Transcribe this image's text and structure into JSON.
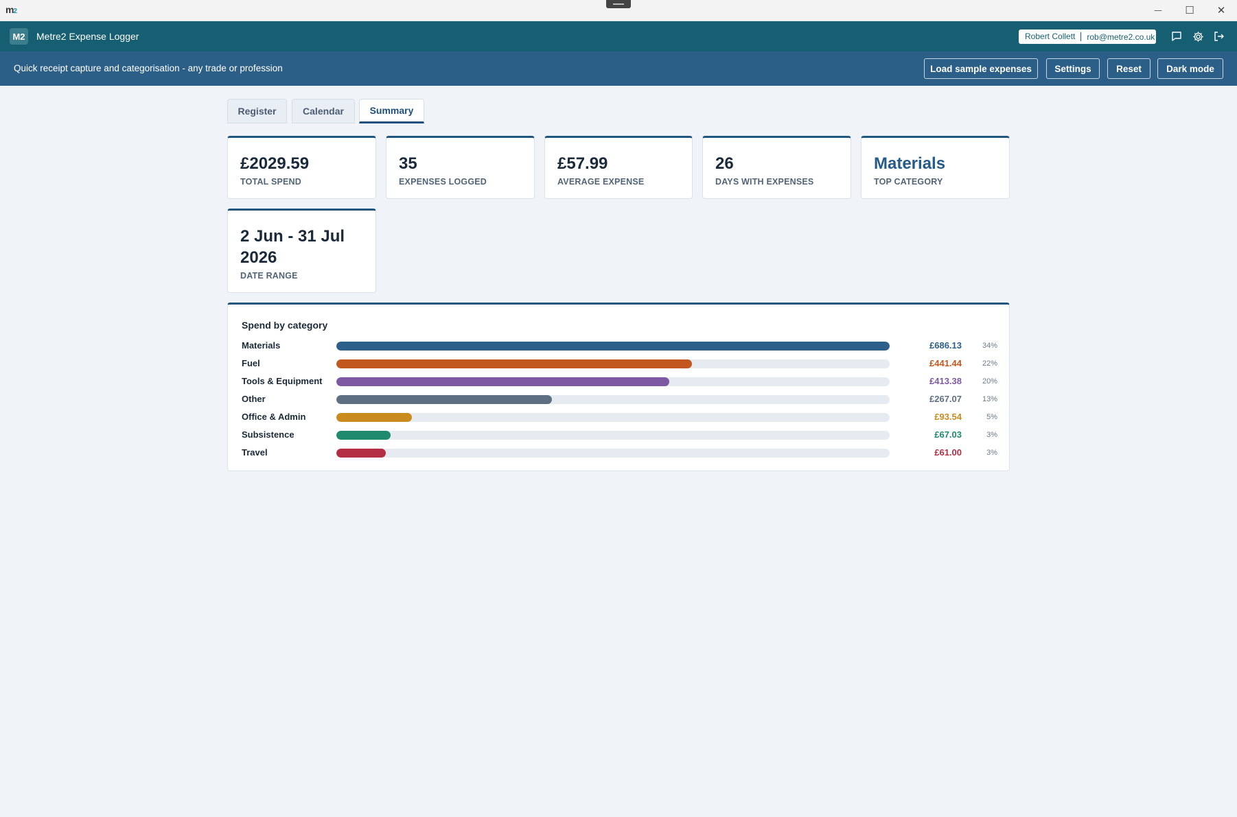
{
  "os": {
    "logo_main": "m",
    "logo_sup": "2",
    "minimize": "—",
    "maximize": "☐",
    "close": "✕"
  },
  "header": {
    "badge": "M2",
    "title": "Metre2 Expense Logger",
    "user_name": "Robert Collett",
    "user_email": "rob@metre2.co.uk"
  },
  "subbar": {
    "tagline": "Quick receipt capture and categorisation - any trade or profession",
    "buttons": {
      "load_sample": "Load sample expenses",
      "settings": "Settings",
      "reset": "Reset",
      "dark_mode": "Dark mode"
    }
  },
  "tabs": [
    {
      "label": "Register"
    },
    {
      "label": "Calendar"
    },
    {
      "label": "Summary",
      "active": true
    }
  ],
  "stats": {
    "total_spend": {
      "value": "£2029.59",
      "label": "TOTAL SPEND"
    },
    "expenses_logged": {
      "value": "35",
      "label": "EXPENSES LOGGED"
    },
    "average_expense": {
      "value": "£57.99",
      "label": "AVERAGE EXPENSE"
    },
    "days_with_expenses": {
      "value": "26",
      "label": "DAYS WITH EXPENSES"
    },
    "top_category": {
      "value": "Materials",
      "label": "TOP CATEGORY"
    },
    "date_range": {
      "value_line1": "2 Jun - 31 Jul",
      "value_line2": "2026",
      "label": "DATE RANGE"
    }
  },
  "category_panel": {
    "title": "Spend by category",
    "categories": [
      {
        "name": "Materials",
        "amount": "£686.13",
        "percent": "34%",
        "fill": 1.0,
        "color": "#2c5f8a"
      },
      {
        "name": "Fuel",
        "amount": "£441.44",
        "percent": "22%",
        "fill": 0.643,
        "color": "#c2571f"
      },
      {
        "name": "Tools & Equipment",
        "amount": "£413.38",
        "percent": "20%",
        "fill": 0.602,
        "color": "#7d59a3"
      },
      {
        "name": "Other",
        "amount": "£267.07",
        "percent": "13%",
        "fill": 0.389,
        "color": "#5d6f80"
      },
      {
        "name": "Office & Admin",
        "amount": "£93.54",
        "percent": "5%",
        "fill": 0.136,
        "color": "#c98a1e"
      },
      {
        "name": "Subsistence",
        "amount": "£67.03",
        "percent": "3%",
        "fill": 0.098,
        "color": "#1f8a6e"
      },
      {
        "name": "Travel",
        "amount": "£61.00",
        "percent": "3%",
        "fill": 0.089,
        "color": "#b52f44"
      }
    ]
  }
}
